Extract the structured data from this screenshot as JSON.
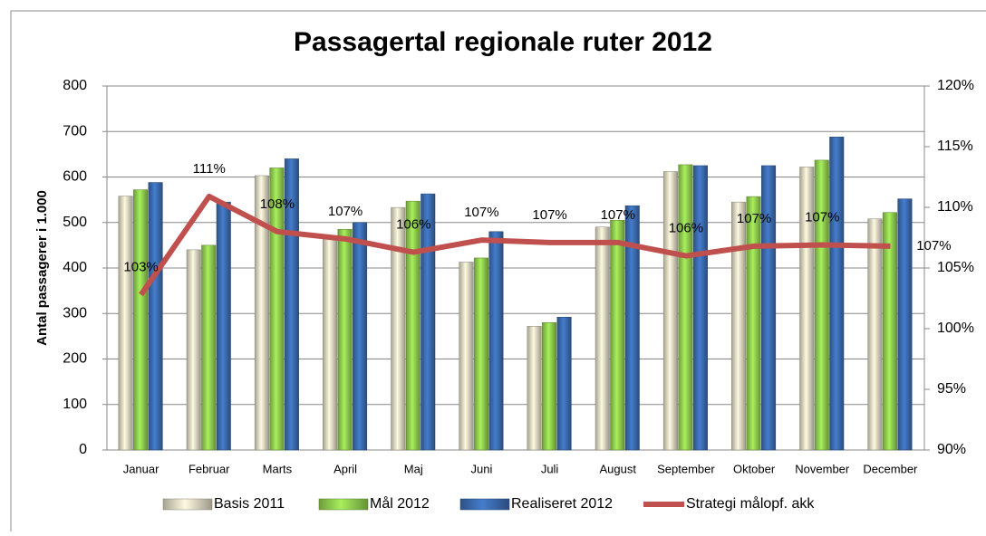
{
  "chart_data": {
    "type": "bar",
    "title": "Passagertal regionale ruter 2012",
    "y_label": "Antal passagerer i 1.000",
    "categories": [
      "Januar",
      "Februar",
      "Marts",
      "April",
      "Maj",
      "Juni",
      "Juli",
      "August",
      "September",
      "Oktober",
      "November",
      "December"
    ],
    "series": [
      {
        "name": "Basis 2011",
        "color": "#ddd9c3",
        "values": [
          558,
          440,
          603,
          470,
          533,
          413,
          272,
          490,
          612,
          545,
          622,
          508
        ]
      },
      {
        "name": "Mål 2012",
        "color": "#92d050",
        "values": [
          572,
          450,
          620,
          485,
          547,
          422,
          280,
          505,
          627,
          557,
          637,
          522
        ]
      },
      {
        "name": "Realiseret 2012",
        "color": "#3c6db2",
        "values": [
          588,
          545,
          640,
          500,
          563,
          480,
          292,
          537,
          625,
          625,
          688,
          552
        ]
      },
      {
        "name": "Strategi målopf. akk",
        "color": "#c0504d",
        "type": "line",
        "axis": "y2",
        "values": [
          102.8,
          110.9,
          108.0,
          107.4,
          106.3,
          107.3,
          107.1,
          107.1,
          106.0,
          106.8,
          106.9,
          106.8
        ],
        "value_labels": [
          "103%",
          "111%",
          "108%",
          "107%",
          "106%",
          "107%",
          "107%",
          "107%",
          "106%",
          "107%",
          "107%",
          "107%"
        ]
      }
    ],
    "ylim": [
      0,
      800
    ],
    "yticks": [
      0,
      100,
      200,
      300,
      400,
      500,
      600,
      700,
      800
    ],
    "y2lim": [
      90,
      120
    ],
    "y2ticks": [
      {
        "value": 90,
        "label": "90%"
      },
      {
        "value": 95,
        "label": "95%"
      },
      {
        "value": 100,
        "label": "100%"
      },
      {
        "value": 105,
        "label": "105%"
      },
      {
        "value": 110,
        "label": "110%"
      },
      {
        "value": 115,
        "label": "115%"
      },
      {
        "value": 120,
        "label": "120%"
      }
    ],
    "grid": true,
    "legend": "bottom"
  }
}
